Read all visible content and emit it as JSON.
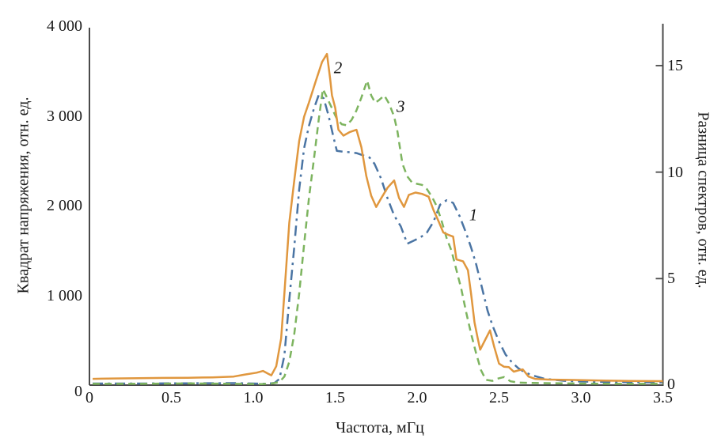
{
  "colors": {
    "background": "#ffffff",
    "axis": "#4a4a4a",
    "text": "#1a1a1a",
    "series_1_blue": "#4A74A3",
    "series_2_orange": "#E0973E",
    "series_3_green": "#7DB45F"
  },
  "chart_data": {
    "type": "line",
    "title": "",
    "grid": false,
    "legend": "inline curve number labels",
    "x_axis": {
      "label": "Частота, мГц",
      "min": 0,
      "max": 3.5,
      "ticks": [
        0,
        0.5,
        1.0,
        1.5,
        2.0,
        2.5,
        3.0,
        3.5
      ],
      "tick_labels": [
        "0",
        "0.5",
        "1.0",
        "1.5",
        "2.0",
        "2.5",
        "3.0",
        "3.5"
      ]
    },
    "y_left_axis": {
      "label": "Квадрат напряжения, отн. ед.",
      "min": 0,
      "max": 4000,
      "ticks": [
        0,
        1000,
        2000,
        3000,
        4000
      ],
      "tick_labels": [
        "0",
        "1 000",
        "2 000",
        "3 000",
        "4 000"
      ]
    },
    "y_right_axis": {
      "label": "Разница спектров, отн. ед.",
      "min": 0,
      "max": 16.9,
      "ticks": [
        5,
        10,
        15
      ],
      "tick_labels": [
        "5",
        "10",
        "15"
      ],
      "zero_label": "0"
    },
    "series": [
      {
        "name": "1",
        "axis": "left",
        "line_style": "dash-dot",
        "color": "#4A74A3",
        "points": [
          [
            0.02,
            18
          ],
          [
            0.3,
            18
          ],
          [
            0.6,
            20
          ],
          [
            0.9,
            22
          ],
          [
            1.0,
            18
          ],
          [
            1.08,
            15
          ],
          [
            1.13,
            25
          ],
          [
            1.16,
            70
          ],
          [
            1.19,
            330
          ],
          [
            1.22,
            950
          ],
          [
            1.25,
            1540
          ],
          [
            1.28,
            2180
          ],
          [
            1.31,
            2640
          ],
          [
            1.34,
            2890
          ],
          [
            1.37,
            3080
          ],
          [
            1.4,
            3235
          ],
          [
            1.43,
            3195
          ],
          [
            1.46,
            3000
          ],
          [
            1.49,
            2760
          ],
          [
            1.51,
            2610
          ],
          [
            1.55,
            2600
          ],
          [
            1.59,
            2595
          ],
          [
            1.63,
            2585
          ],
          [
            1.67,
            2560
          ],
          [
            1.71,
            2535
          ],
          [
            1.74,
            2465
          ],
          [
            1.78,
            2300
          ],
          [
            1.82,
            2080
          ],
          [
            1.86,
            1890
          ],
          [
            1.9,
            1770
          ],
          [
            1.94,
            1575
          ],
          [
            1.98,
            1610
          ],
          [
            2.02,
            1645
          ],
          [
            2.06,
            1700
          ],
          [
            2.1,
            1820
          ],
          [
            2.14,
            2010
          ],
          [
            2.18,
            2060
          ],
          [
            2.22,
            2030
          ],
          [
            2.26,
            1880
          ],
          [
            2.3,
            1690
          ],
          [
            2.33,
            1530
          ],
          [
            2.36,
            1350
          ],
          [
            2.39,
            1130
          ],
          [
            2.43,
            830
          ],
          [
            2.46,
            665
          ],
          [
            2.5,
            485
          ],
          [
            2.54,
            340
          ],
          [
            2.58,
            250
          ],
          [
            2.62,
            185
          ],
          [
            2.66,
            140
          ],
          [
            2.71,
            105
          ],
          [
            2.78,
            70
          ],
          [
            2.9,
            48
          ],
          [
            3.05,
            38
          ],
          [
            3.25,
            33
          ],
          [
            3.5,
            30
          ]
        ]
      },
      {
        "name": "2",
        "axis": "left",
        "line_style": "solid",
        "color": "#E0973E",
        "points": [
          [
            0.02,
            70
          ],
          [
            0.15,
            74
          ],
          [
            0.3,
            77
          ],
          [
            0.45,
            80
          ],
          [
            0.6,
            82
          ],
          [
            0.75,
            86
          ],
          [
            0.88,
            95
          ],
          [
            0.95,
            118
          ],
          [
            1.02,
            138
          ],
          [
            1.06,
            158
          ],
          [
            1.09,
            128
          ],
          [
            1.11,
            108
          ],
          [
            1.14,
            210
          ],
          [
            1.17,
            520
          ],
          [
            1.19,
            1020
          ],
          [
            1.22,
            1810
          ],
          [
            1.25,
            2280
          ],
          [
            1.28,
            2720
          ],
          [
            1.31,
            2990
          ],
          [
            1.34,
            3150
          ],
          [
            1.38,
            3380
          ],
          [
            1.42,
            3600
          ],
          [
            1.45,
            3690
          ],
          [
            1.47,
            3400
          ],
          [
            1.48,
            3230
          ],
          [
            1.5,
            3090
          ],
          [
            1.52,
            2845
          ],
          [
            1.55,
            2780
          ],
          [
            1.59,
            2820
          ],
          [
            1.63,
            2845
          ],
          [
            1.66,
            2650
          ],
          [
            1.69,
            2330
          ],
          [
            1.72,
            2110
          ],
          [
            1.75,
            1985
          ],
          [
            1.78,
            2080
          ],
          [
            1.82,
            2200
          ],
          [
            1.86,
            2280
          ],
          [
            1.89,
            2085
          ],
          [
            1.92,
            1985
          ],
          [
            1.95,
            2120
          ],
          [
            1.99,
            2145
          ],
          [
            2.03,
            2130
          ],
          [
            2.07,
            2100
          ],
          [
            2.1,
            1950
          ],
          [
            2.13,
            1830
          ],
          [
            2.16,
            1700
          ],
          [
            2.19,
            1675
          ],
          [
            2.22,
            1655
          ],
          [
            2.24,
            1400
          ],
          [
            2.28,
            1380
          ],
          [
            2.31,
            1280
          ],
          [
            2.33,
            1010
          ],
          [
            2.35,
            700
          ],
          [
            2.37,
            520
          ],
          [
            2.385,
            395
          ],
          [
            2.42,
            520
          ],
          [
            2.445,
            610
          ],
          [
            2.47,
            430
          ],
          [
            2.5,
            240
          ],
          [
            2.53,
            205
          ],
          [
            2.56,
            200
          ],
          [
            2.59,
            150
          ],
          [
            2.62,
            165
          ],
          [
            2.645,
            175
          ],
          [
            2.68,
            95
          ],
          [
            2.72,
            70
          ],
          [
            2.8,
            62
          ],
          [
            2.95,
            57
          ],
          [
            3.1,
            52
          ],
          [
            3.3,
            47
          ],
          [
            3.5,
            44
          ]
        ]
      },
      {
        "name": "3",
        "axis": "right",
        "line_style": "dashed",
        "color": "#7DB45F",
        "points": [
          [
            0.02,
            0.06
          ],
          [
            0.3,
            0.06
          ],
          [
            0.6,
            0.08
          ],
          [
            0.9,
            0.06
          ],
          [
            1.05,
            0.05
          ],
          [
            1.12,
            0.08
          ],
          [
            1.16,
            0.15
          ],
          [
            1.19,
            0.4
          ],
          [
            1.22,
            1.1
          ],
          [
            1.25,
            2.4
          ],
          [
            1.28,
            4.3
          ],
          [
            1.31,
            6.6
          ],
          [
            1.34,
            8.8
          ],
          [
            1.37,
            10.6
          ],
          [
            1.4,
            12.5
          ],
          [
            1.425,
            13.9
          ],
          [
            1.45,
            13.5
          ],
          [
            1.48,
            13.0
          ],
          [
            1.51,
            12.5
          ],
          [
            1.54,
            12.25
          ],
          [
            1.57,
            12.2
          ],
          [
            1.6,
            12.45
          ],
          [
            1.63,
            12.9
          ],
          [
            1.66,
            13.5
          ],
          [
            1.695,
            14.3
          ],
          [
            1.72,
            13.6
          ],
          [
            1.745,
            13.25
          ],
          [
            1.77,
            13.4
          ],
          [
            1.8,
            13.6
          ],
          [
            1.83,
            13.2
          ],
          [
            1.86,
            12.6
          ],
          [
            1.88,
            11.9
          ],
          [
            1.91,
            10.4
          ],
          [
            1.94,
            9.8
          ],
          [
            1.97,
            9.5
          ],
          [
            2.0,
            9.45
          ],
          [
            2.03,
            9.4
          ],
          [
            2.06,
            9.2
          ],
          [
            2.09,
            8.85
          ],
          [
            2.12,
            8.4
          ],
          [
            2.15,
            7.7
          ],
          [
            2.18,
            6.9
          ],
          [
            2.21,
            6.3
          ],
          [
            2.24,
            5.4
          ],
          [
            2.27,
            4.5
          ],
          [
            2.3,
            3.4
          ],
          [
            2.33,
            2.4
          ],
          [
            2.36,
            1.5
          ],
          [
            2.39,
            0.7
          ],
          [
            2.42,
            0.25
          ],
          [
            2.46,
            0.2
          ],
          [
            2.49,
            0.3
          ],
          [
            2.53,
            0.38
          ],
          [
            2.57,
            0.18
          ],
          [
            2.62,
            0.12
          ],
          [
            2.7,
            0.1
          ],
          [
            2.9,
            0.08
          ],
          [
            3.2,
            0.06
          ],
          [
            3.5,
            0.06
          ]
        ]
      }
    ],
    "curve_labels": [
      {
        "text": "2",
        "x": 1.517,
        "y_left": 3533
      },
      {
        "text": "3",
        "x": 1.9,
        "y_left": 3101
      },
      {
        "text": "1",
        "x": 2.343,
        "y_left": 1894
      }
    ]
  }
}
